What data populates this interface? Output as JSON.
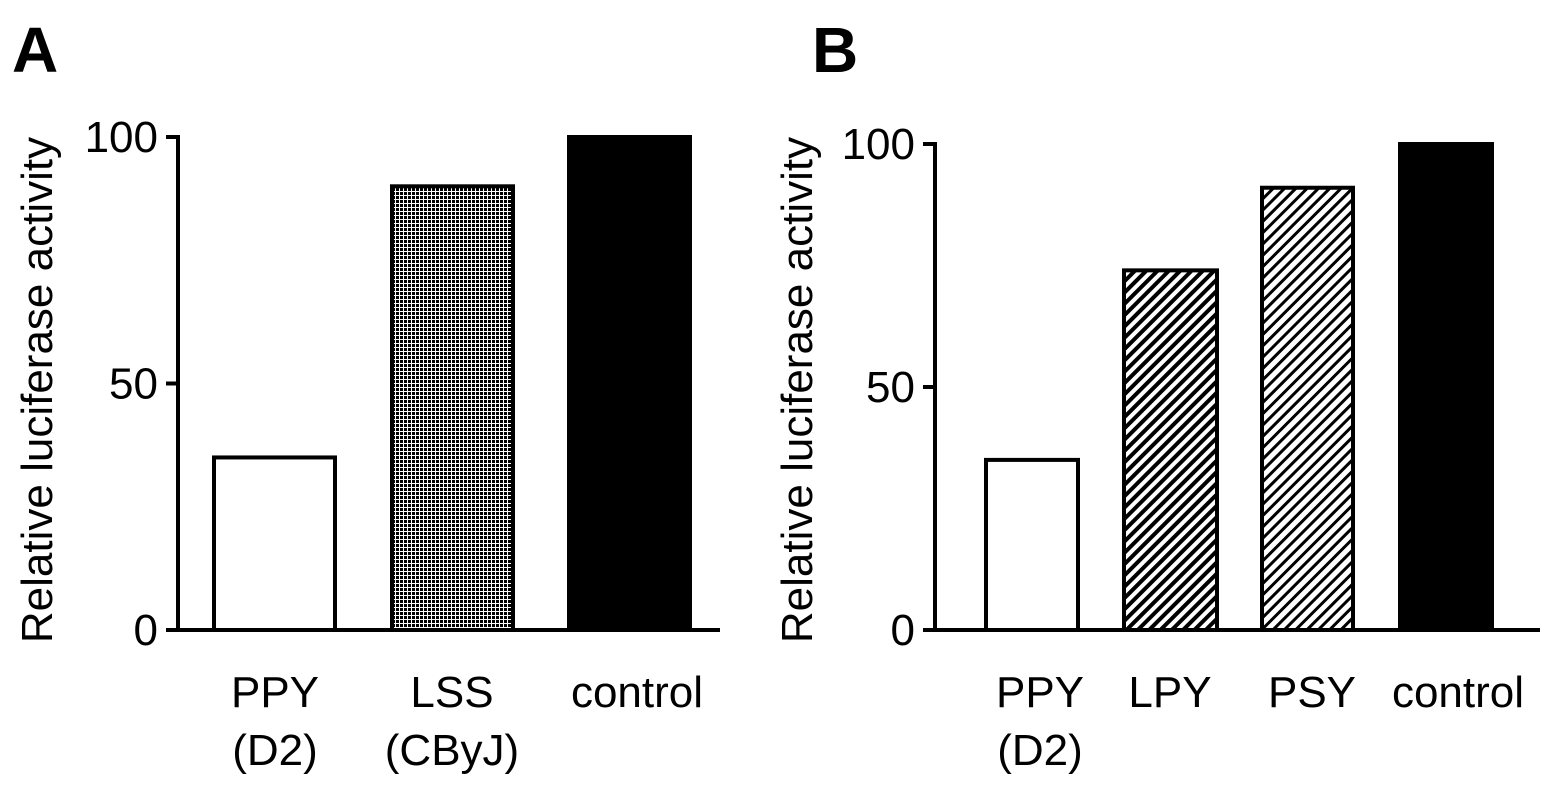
{
  "chart_data": [
    {
      "panel": "A",
      "type": "bar",
      "ylabel": "Relative luciferase activity",
      "xlabel": "",
      "ylim": [
        0,
        100
      ],
      "yticks": [
        "0",
        "50",
        "100"
      ],
      "categories": [
        [
          "PPY",
          "(D2)"
        ],
        [
          "LSS",
          "(CByJ)"
        ],
        [
          "control"
        ]
      ],
      "values": [
        35,
        90,
        100
      ],
      "fills": [
        "white",
        "dots",
        "black"
      ],
      "grid": false
    },
    {
      "panel": "B",
      "type": "bar",
      "ylabel": "Relative luciferase activity",
      "xlabel": "",
      "ylim": [
        0,
        100
      ],
      "yticks": [
        "0",
        "50",
        "100"
      ],
      "categories": [
        [
          "PPY",
          "(D2)"
        ],
        [
          "LPY"
        ],
        [
          "PSY"
        ],
        [
          "control"
        ]
      ],
      "values": [
        35,
        74,
        91,
        100
      ],
      "fills": [
        "white",
        "hatch-dense",
        "hatch-sparse",
        "black"
      ],
      "grid": false
    }
  ],
  "colors": {
    "bar_fill_solid": "#000000",
    "bar_stroke": "#000000",
    "background": "#ffffff"
  }
}
